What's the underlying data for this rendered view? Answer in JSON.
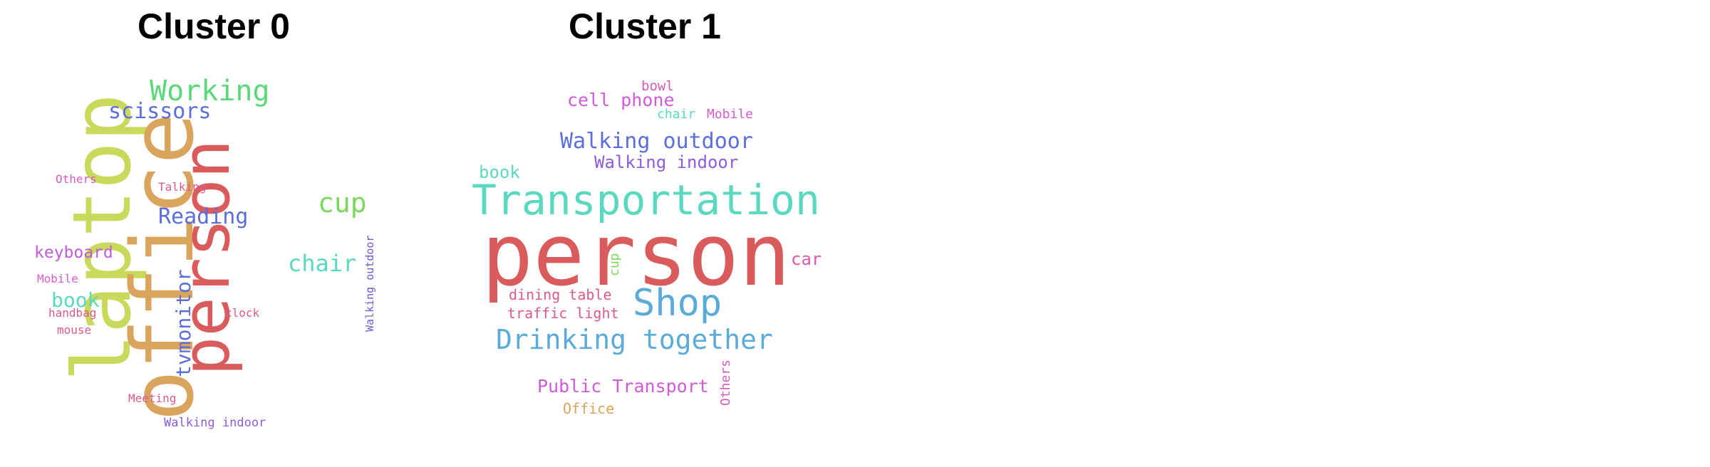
{
  "clusters": [
    {
      "title": "Cluster 0",
      "words": [
        {
          "text": "laptop",
          "color": "#c9d95b"
        },
        {
          "text": "office",
          "color": "#d9a45b"
        },
        {
          "text": "person",
          "color": "#d95b5b"
        },
        {
          "text": "Working",
          "color": "#5bd97a"
        },
        {
          "text": "scissors",
          "color": "#5b6ed9"
        },
        {
          "text": "cup",
          "color": "#7ad95b"
        },
        {
          "text": "Reading",
          "color": "#5b6ed9"
        },
        {
          "text": "chair",
          "color": "#5bd9c0"
        },
        {
          "text": "keyboard",
          "color": "#c05bd9"
        },
        {
          "text": "book",
          "color": "#5bd9c0"
        },
        {
          "text": "tvmonitor",
          "color": "#5b6ed9"
        },
        {
          "text": "Walking outdoor",
          "color": "#6e5bd9"
        },
        {
          "text": "Others",
          "color": "#d95bc0"
        },
        {
          "text": "Talking",
          "color": "#d95b8f"
        },
        {
          "text": "Mobile",
          "color": "#d95bd0"
        },
        {
          "text": "handbag",
          "color": "#d95b8f"
        },
        {
          "text": "clock",
          "color": "#d95b8f"
        },
        {
          "text": "mouse",
          "color": "#d95b8f"
        },
        {
          "text": "Meeting",
          "color": "#d95b8f"
        },
        {
          "text": "Walking indoor",
          "color": "#8f5bd9"
        }
      ]
    },
    {
      "title": "Cluster 1",
      "words": [
        {
          "text": "person",
          "color": "#d95b5b"
        },
        {
          "text": "Transportation",
          "color": "#5bd9c0"
        },
        {
          "text": "Walking outdoor",
          "color": "#5b6ed9"
        },
        {
          "text": "Walking indoor",
          "color": "#8f5bd9"
        },
        {
          "text": "cell phone",
          "color": "#d05bd9"
        },
        {
          "text": "bowl",
          "color": "#d95bb0"
        },
        {
          "text": "chair",
          "color": "#5bd9c0"
        },
        {
          "text": "Mobile",
          "color": "#d95bd0"
        },
        {
          "text": "book",
          "color": "#5bd9c0"
        },
        {
          "text": "car",
          "color": "#d95bb0"
        },
        {
          "text": "cup",
          "color": "#7ad95b"
        },
        {
          "text": "dining table",
          "color": "#d95b8f"
        },
        {
          "text": "traffic light",
          "color": "#d95b8f"
        },
        {
          "text": "Shop",
          "color": "#5babd9"
        },
        {
          "text": "Drinking together",
          "color": "#5babd9"
        },
        {
          "text": "Public Transport",
          "color": "#d05bd9"
        },
        {
          "text": "Others",
          "color": "#d95bc0"
        },
        {
          "text": "Office",
          "color": "#d9a45b"
        }
      ]
    }
  ]
}
